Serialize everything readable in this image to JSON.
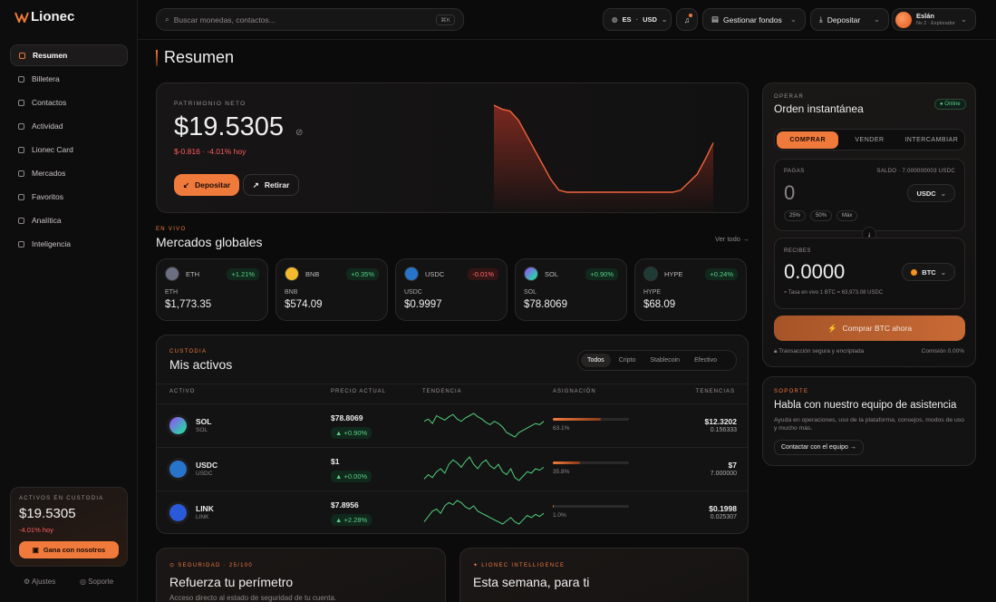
{
  "brand": "Lionec",
  "sidebar": {
    "nav": [
      "Resumen",
      "Billetera",
      "Contactos",
      "Actividad",
      "Lionec Card",
      "Mercados",
      "Favoritos",
      "Analítica",
      "Inteligencia"
    ],
    "custody": {
      "label": "ACTIVOS EN CUSTODIA",
      "value": "$19.5305",
      "change": "-4.01% hoy",
      "button": "Gana con nosotros"
    },
    "footer": [
      "Ajustes",
      "Soporte"
    ]
  },
  "topbar": {
    "search": "Buscar monedas, contactos...",
    "shortcut": "⌘K",
    "language": "ES",
    "currency": "USD",
    "manage": "Gestionar fondos",
    "deposit": "Depositar",
    "user": {
      "name": "Eslán",
      "level": "Nv 2 · Explorador"
    }
  },
  "page_title": "Resumen",
  "net_worth": {
    "label": "PATRIMONIO NETO",
    "value": "$19.5305",
    "change": "$-0.816 · -4.01% hoy",
    "buttons": [
      "Depositar",
      "Retirar"
    ],
    "sparkline": [
      100,
      96,
      94,
      85,
      70,
      55,
      40,
      25,
      14,
      12,
      12,
      12,
      12,
      12,
      12,
      12,
      12,
      12,
      12,
      12,
      12,
      12,
      12,
      14,
      22,
      30,
      45,
      62
    ]
  },
  "markets": {
    "label": "EN VIVO",
    "title": "Mercados globales",
    "link": "Ver todo →",
    "cards": [
      {
        "symbol": "ETH",
        "change": "+1.21%",
        "name": "ETH",
        "price": "$1,773.35"
      },
      {
        "symbol": "BNB",
        "change": "+0.35%",
        "name": "BNB",
        "price": "$574.09"
      },
      {
        "symbol": "USDC",
        "change": "-0.01%",
        "name": "USDC",
        "price": "$0.9997"
      },
      {
        "symbol": "SOL",
        "change": "+0.90%",
        "name": "SOL",
        "price": "$78.8069"
      },
      {
        "symbol": "HYPE",
        "change": "+0.24%",
        "name": "HYPE",
        "price": "$68.09"
      }
    ]
  },
  "assets": {
    "label": "CUSTODIA",
    "title": "Mis activos",
    "filters": [
      "Todos",
      "Cripto",
      "Stablecoin",
      "Efectivo"
    ],
    "columns": [
      "ACTIVO",
      "PRECIO ACTUAL",
      "TENDENCIA",
      "ASIGNACIÓN",
      "TENENCIAS"
    ],
    "rows": [
      {
        "symbol": "SOL",
        "name": "SOL",
        "price": "$78.8069",
        "change": "▲ +0.90%",
        "allocation": 63.1,
        "allocation_label": "63.1%",
        "holdings_value": "$12.3202",
        "holdings_amount": "0.156333",
        "trend": [
          50,
          52,
          48,
          55,
          53,
          51,
          54,
          56,
          52,
          50,
          53,
          55,
          57,
          54,
          52,
          49,
          47,
          50,
          48,
          45,
          40,
          38,
          36,
          40,
          42,
          44,
          46,
          48,
          47,
          50
        ]
      },
      {
        "symbol": "USDC",
        "name": "USDC",
        "price": "$1",
        "change": "▲ +0.00%",
        "allocation": 35.8,
        "allocation_label": "35.8%",
        "holdings_value": "$7",
        "holdings_amount": "7.000000",
        "trend": [
          45,
          48,
          46,
          50,
          52,
          49,
          55,
          58,
          56,
          53,
          57,
          60,
          55,
          52,
          56,
          58,
          54,
          52,
          55,
          50,
          48,
          52,
          46,
          44,
          47,
          50,
          49,
          52,
          51,
          53
        ]
      },
      {
        "symbol": "LINK",
        "name": "LINK",
        "price": "$7.8956",
        "change": "▲ +2.28%",
        "allocation": 1.0,
        "allocation_label": "1.0%",
        "holdings_value": "$0.1998",
        "holdings_amount": "0.025307",
        "trend": [
          40,
          45,
          50,
          52,
          48,
          55,
          58,
          56,
          60,
          58,
          54,
          52,
          55,
          50,
          48,
          46,
          44,
          42,
          40,
          38,
          41,
          44,
          40,
          38,
          42,
          46,
          44,
          47,
          45,
          48
        ]
      }
    ]
  },
  "trade": {
    "label": "OPERAR",
    "title": "Orden instantánea",
    "status": "Online",
    "tabs": [
      "COMPRAR",
      "VENDER",
      "INTERCAMBIAR"
    ],
    "pay": {
      "label": "PAGAS",
      "balance": "SALDO · 7.000000003 USDC",
      "amount": "0",
      "token": "USDC",
      "chips": [
        "25%",
        "50%",
        "Máx"
      ]
    },
    "receive": {
      "label": "RECIBES",
      "amount": "0.0000",
      "token": "BTC",
      "rate": "≈ Tasa en vivo 1 BTC = 63,973.08 USDC"
    },
    "button": "Comprar BTC ahora",
    "secure": "Transacción segura y encriptada",
    "fee": "Comisión 0.00%"
  },
  "support": {
    "label": "SOPORTE",
    "title": "Habla con nuestro equipo de asistencia",
    "text": "Ayuda en operaciones, uso de la plataforma, consejos, modos de uso y mucho más.",
    "button": "Contactar con el equipo →"
  },
  "bottom_cards": [
    {
      "label": "SEGURIDAD · 25/100",
      "title": "Refuerza tu perímetro",
      "text": "Acceso directo al estado de seguridad de tu cuenta."
    },
    {
      "label": "LIONEC INTELLIGENCE",
      "title": "Esta semana, para ti"
    }
  ]
}
